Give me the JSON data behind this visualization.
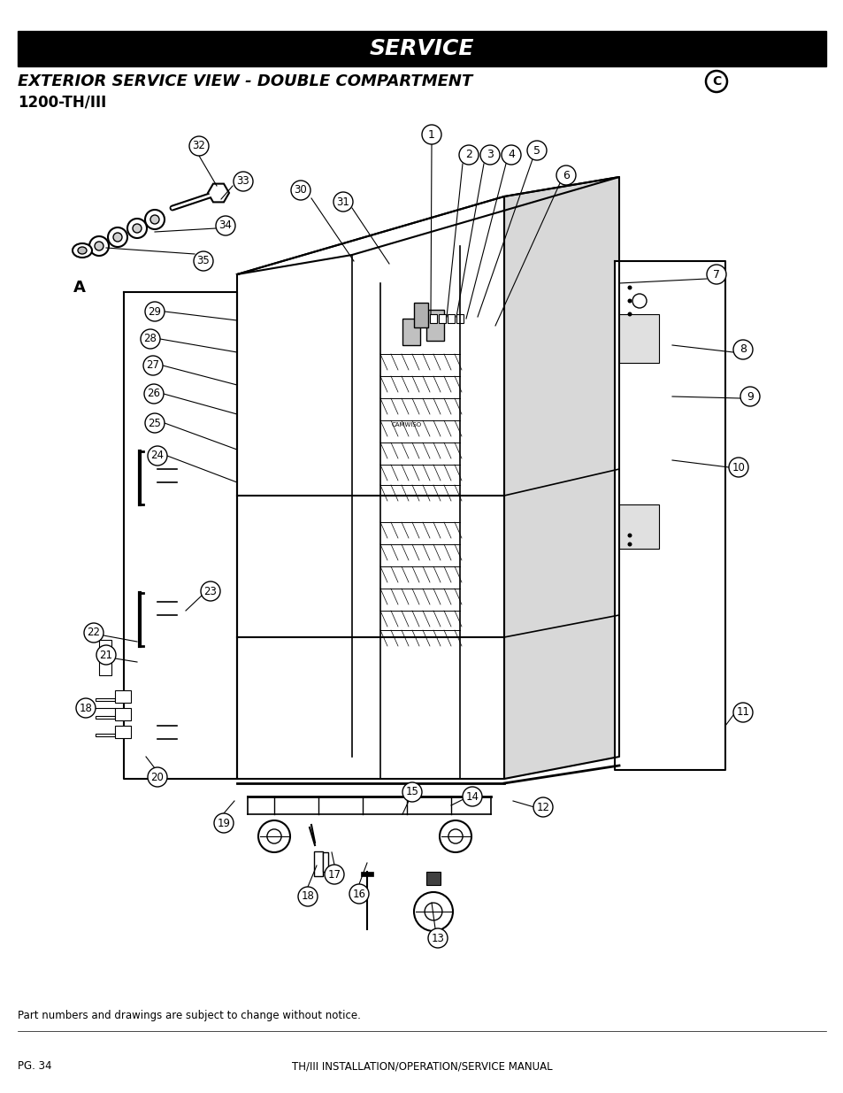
{
  "page_bg": "#ffffff",
  "header_bg": "#000000",
  "header_text": "SERVICE",
  "header_text_color": "#ffffff",
  "subtitle": "EXTERIOR SERVICE VIEW - DOUBLE COMPARTMENT",
  "subtitle_circle_letter": "C",
  "model": "1200-TH/III",
  "footer_left": "PG. 34",
  "footer_center": "TH/III INSTALLATION/OPERATION/SERVICE MANUAL",
  "footer_note": "Part numbers and drawings are subject to change without notice.",
  "label_A": "A",
  "header_fontsize": 18,
  "subtitle_fontsize": 13,
  "model_fontsize": 12,
  "label_fontsize": 9,
  "footer_fontsize": 8.5
}
